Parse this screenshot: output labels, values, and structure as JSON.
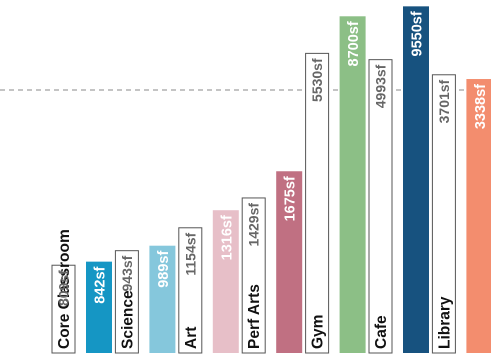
{
  "chart_data": {
    "type": "bar",
    "title": "",
    "xlabel": "",
    "ylabel": "",
    "unit_suffix": "sf",
    "categories": [
      "Core Classroom",
      "Science",
      "Art",
      "Perf Arts",
      "Gym",
      "Cafe",
      "Library"
    ],
    "series": [
      {
        "role": "baseline",
        "values": [
          809,
          943,
          1154,
          1429,
          5530,
          4993,
          3701
        ],
        "value_labels": [
          "809sf",
          "943sf",
          "1154sf",
          "1429sf",
          "5530sf",
          "4993sf",
          "3701sf"
        ]
      },
      {
        "role": "proposed",
        "values": [
          842,
          989,
          1316,
          1675,
          8700,
          9550,
          3338
        ],
        "value_labels": [
          "842sf",
          "989sf",
          "1316sf",
          "1675sf",
          "8700sf",
          "9550sf",
          "3338sf"
        ]
      }
    ],
    "colors": [
      "#1596c4",
      "#85c7dc",
      "#e7bfc8",
      "#c07082",
      "#8cbf86",
      "#17527f",
      "#f38d6e"
    ],
    "baseline_style": {
      "fill": "#ffffff",
      "stroke": "#555555"
    },
    "reference_line": {
      "style": "dashed",
      "color": "#888888"
    },
    "axis_break": true
  }
}
